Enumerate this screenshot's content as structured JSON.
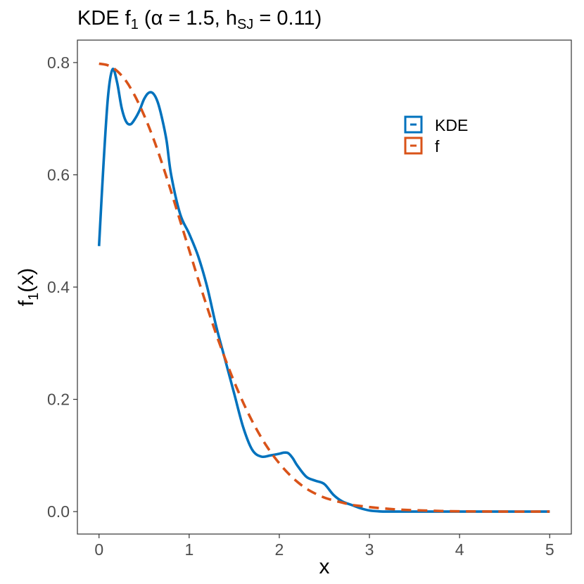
{
  "chart_data": {
    "type": "line",
    "title": {
      "prefix": "KDE f",
      "prefix_sub": "1",
      "open": " (",
      "alpha_symbol": "α",
      "alpha_eq": " = 1.5, h",
      "h_sub": "SJ",
      "h_eq": " = 0.11)"
    },
    "xlabel": "x",
    "ylabel": {
      "main": "f",
      "sub": "1",
      "rest": "(x)"
    },
    "xlim": [
      -0.24,
      5.24
    ],
    "ylim": [
      -0.04,
      0.84
    ],
    "x_ticks": [
      0,
      1,
      2,
      3,
      4,
      5
    ],
    "x_tick_labels": [
      "0",
      "1",
      "2",
      "3",
      "4",
      "5"
    ],
    "y_ticks": [
      0.0,
      0.2,
      0.4,
      0.6,
      0.8
    ],
    "y_tick_labels": [
      "0.0",
      "0.2",
      "0.4",
      "0.6",
      "0.8"
    ],
    "grid": false,
    "legend_position": "top-right",
    "series": [
      {
        "name": "KDE",
        "color": "#0072BD",
        "style": "solid",
        "x": [
          0.0,
          0.05,
          0.1,
          0.15,
          0.2,
          0.25,
          0.3,
          0.35,
          0.4,
          0.45,
          0.5,
          0.55,
          0.6,
          0.65,
          0.7,
          0.75,
          0.8,
          0.9,
          1.0,
          1.1,
          1.2,
          1.3,
          1.4,
          1.5,
          1.6,
          1.7,
          1.8,
          1.9,
          2.0,
          2.05,
          2.1,
          2.15,
          2.2,
          2.3,
          2.4,
          2.5,
          2.6,
          2.7,
          2.8,
          2.9,
          3.0,
          3.1,
          3.2,
          3.5,
          4.0,
          4.5,
          5.0
        ],
        "y": [
          0.473,
          0.62,
          0.74,
          0.788,
          0.765,
          0.72,
          0.695,
          0.69,
          0.7,
          0.715,
          0.735,
          0.746,
          0.745,
          0.73,
          0.7,
          0.66,
          0.6,
          0.53,
          0.495,
          0.455,
          0.4,
          0.33,
          0.27,
          0.21,
          0.15,
          0.11,
          0.098,
          0.1,
          0.103,
          0.105,
          0.104,
          0.095,
          0.082,
          0.062,
          0.055,
          0.049,
          0.03,
          0.018,
          0.012,
          0.006,
          0.002,
          0.0005,
          0.0,
          0.0,
          0.0,
          0.0,
          0.0
        ]
      },
      {
        "name": "f",
        "color": "#D95319",
        "style": "dashed",
        "x": [
          0.0,
          0.1,
          0.2,
          0.3,
          0.4,
          0.5,
          0.6,
          0.7,
          0.8,
          0.9,
          1.0,
          1.1,
          1.2,
          1.3,
          1.4,
          1.5,
          1.6,
          1.7,
          1.8,
          1.9,
          2.0,
          2.1,
          2.2,
          2.3,
          2.4,
          2.5,
          2.6,
          2.7,
          2.8,
          2.9,
          3.0,
          3.2,
          3.4,
          3.6,
          3.8,
          4.0,
          4.5,
          5.0
        ],
        "y": [
          0.798,
          0.795,
          0.785,
          0.767,
          0.74,
          0.706,
          0.666,
          0.62,
          0.57,
          0.518,
          0.466,
          0.414,
          0.364,
          0.316,
          0.272,
          0.231,
          0.194,
          0.161,
          0.132,
          0.107,
          0.086,
          0.068,
          0.053,
          0.041,
          0.032,
          0.025,
          0.02,
          0.016,
          0.012,
          0.01,
          0.008,
          0.005,
          0.003,
          0.002,
          0.001,
          0.0005,
          0.0,
          0.0
        ]
      }
    ]
  }
}
